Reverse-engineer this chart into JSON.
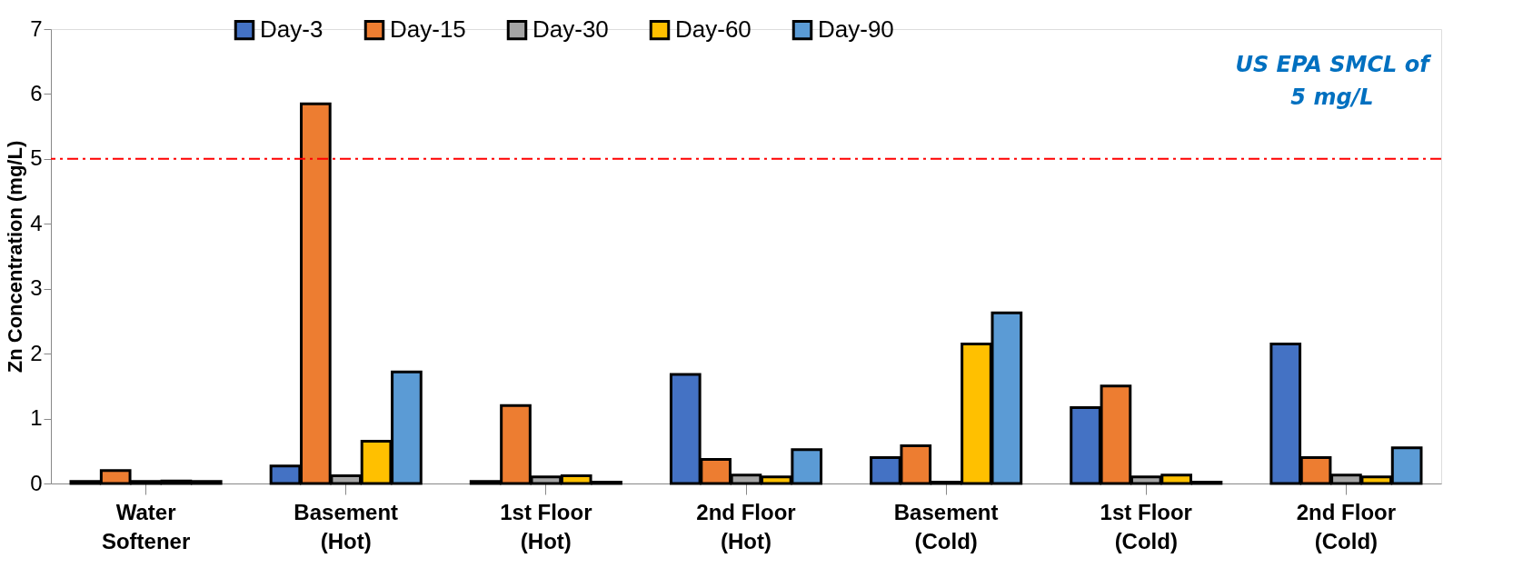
{
  "chart_data": {
    "type": "bar",
    "ylabel": "Zn Concentration (mg/L)",
    "categories": [
      "Water Softener",
      "Basement (Hot)",
      "1st Floor (Hot)",
      "2nd Floor (Hot)",
      "Basement (Cold)",
      "1st Floor (Cold)",
      "2nd Floor (Cold)"
    ],
    "series": [
      {
        "name": "Day-3",
        "color": "#4472c4",
        "values": [
          0.03,
          0.27,
          0.03,
          1.68,
          0.4,
          1.17,
          2.15
        ]
      },
      {
        "name": "Day-15",
        "color": "#ed7d31",
        "values": [
          0.2,
          5.85,
          1.2,
          0.37,
          0.58,
          1.5,
          0.4
        ]
      },
      {
        "name": "Day-30",
        "color": "#a5a5a5",
        "values": [
          0.03,
          0.12,
          0.1,
          0.13,
          0.02,
          0.1,
          0.13
        ]
      },
      {
        "name": "Day-60",
        "color": "#ffc000",
        "values": [
          0.04,
          0.65,
          0.12,
          0.1,
          2.15,
          0.13,
          0.1
        ]
      },
      {
        "name": "Day-90",
        "color": "#5b9bd5",
        "values": [
          0.03,
          1.72,
          0.02,
          0.52,
          2.63,
          0.02,
          0.55
        ]
      }
    ],
    "ylim": [
      0,
      7
    ],
    "yticks": [
      0,
      1,
      2,
      3,
      4,
      5,
      6,
      7
    ],
    "grid": false,
    "legend": "top",
    "ref_lines": [
      {
        "axis": "y",
        "value": 5,
        "label": "US EPA SMCL of 5 mg/L",
        "color": "#ff0000",
        "line_style": "dashdot"
      }
    ]
  }
}
